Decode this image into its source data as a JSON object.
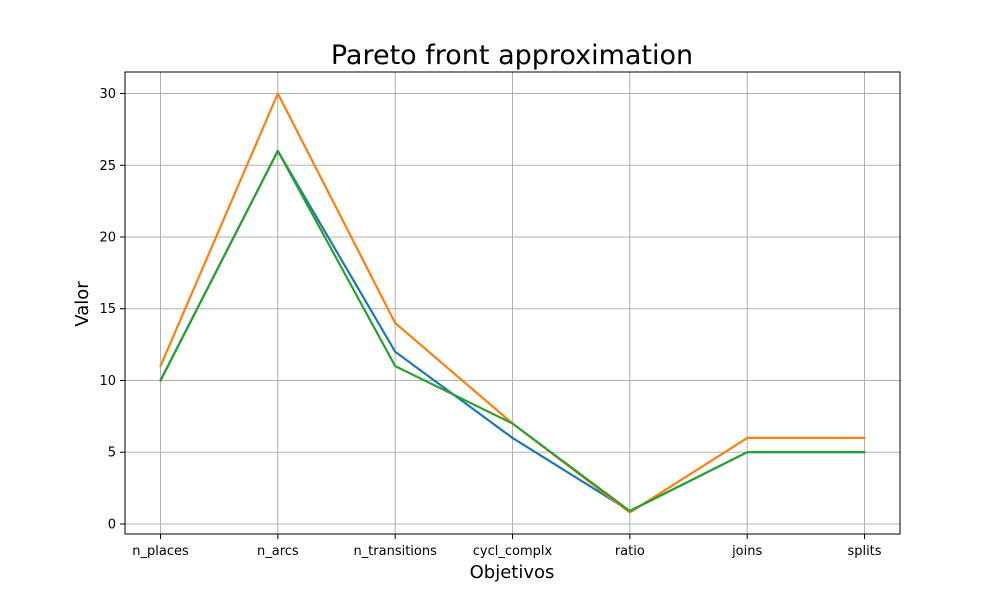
{
  "chart_data": {
    "type": "line",
    "title": "Pareto front approximation",
    "xlabel": "Objetivos",
    "ylabel": "Valor",
    "categories": [
      "n_places",
      "n_arcs",
      "n_transitions",
      "cycl_complx",
      "ratio",
      "joins",
      "splits"
    ],
    "yticks": [
      0,
      5,
      10,
      15,
      20,
      25,
      30
    ],
    "ylim": [
      -0.7,
      31.5
    ],
    "grid": true,
    "series": [
      {
        "color": "#1f77b4",
        "values": [
          10,
          26,
          12,
          6,
          0.9,
          5,
          5
        ]
      },
      {
        "color": "#ff7f0e",
        "values": [
          11,
          30,
          14,
          7,
          0.8,
          6,
          6
        ]
      },
      {
        "color": "#2ca02c",
        "values": [
          10,
          26,
          11,
          7,
          0.9,
          5,
          5
        ]
      }
    ]
  }
}
